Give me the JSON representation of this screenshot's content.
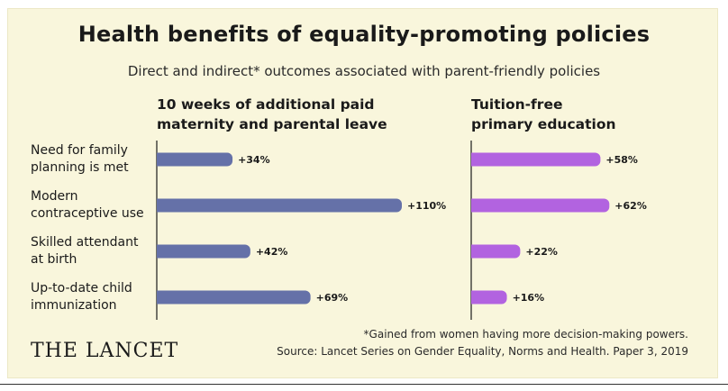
{
  "title": "Health benefits of equality-promoting policies",
  "subtitle": "Direct and indirect* outcomes associated with parent-friendly policies",
  "footnote": "*Gained from women having more decision-making powers.",
  "source": "Source: Lancet Series on Gender Equality, Norms and Health. Paper 3, 2019",
  "logo": "THE LANCET",
  "colors": {
    "leave": "#6571a8",
    "education": "#b263e0"
  },
  "chart_data": [
    {
      "type": "bar",
      "orientation": "horizontal",
      "title_lines": [
        "10 weeks of additional paid",
        "maternity and parental leave"
      ],
      "categories": [
        [
          "Need for family",
          "planning is met"
        ],
        [
          "Modern",
          "contraceptive use"
        ],
        [
          "Skilled attendant",
          "at birth"
        ],
        [
          "Up-to-date child",
          "immunization"
        ]
      ],
      "values": [
        34,
        110,
        42,
        69
      ],
      "value_labels": [
        "+34%",
        "+110%",
        "+42%",
        "+69%"
      ],
      "unit": "%",
      "color": "#6571a8"
    },
    {
      "type": "bar",
      "orientation": "horizontal",
      "title_lines": [
        "Tuition-free",
        "primary education"
      ],
      "values": [
        58,
        62,
        22,
        16
      ],
      "value_labels": [
        "+58%",
        "+62%",
        "+22%",
        "+16%"
      ],
      "unit": "%",
      "color": "#b263e0"
    }
  ]
}
